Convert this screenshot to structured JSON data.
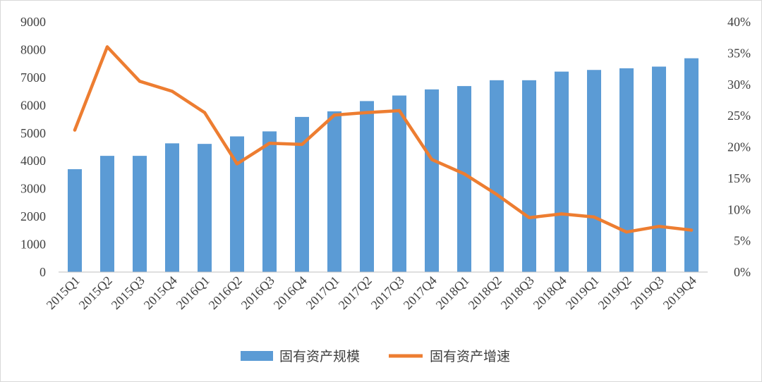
{
  "chart_data": {
    "type": "bar+line",
    "title": "",
    "categories": [
      "2015Q1",
      "2015Q2",
      "2015Q3",
      "2015Q4",
      "2016Q1",
      "2016Q2",
      "2016Q3",
      "2016Q4",
      "2017Q1",
      "2017Q2",
      "2017Q3",
      "2017Q4",
      "2018Q1",
      "2018Q2",
      "2018Q3",
      "2018Q4",
      "2019Q1",
      "2019Q2",
      "2019Q3",
      "2019Q4"
    ],
    "series": [
      {
        "name": "固有资产规模",
        "type": "bar",
        "axis": "left",
        "color": "#5B9BD5",
        "values": [
          3700,
          4180,
          4180,
          4630,
          4610,
          4880,
          5060,
          5580,
          5780,
          6150,
          6350,
          6570,
          6690,
          6900,
          6900,
          7210,
          7270,
          7330,
          7390,
          7690
        ]
      },
      {
        "name": "固有资产增速",
        "type": "line",
        "axis": "right",
        "color": "#ED7D31",
        "values": [
          22.7,
          36.0,
          30.5,
          28.9,
          25.5,
          17.3,
          20.6,
          20.4,
          25.1,
          25.5,
          25.8,
          18.0,
          15.7,
          12.4,
          8.7,
          9.3,
          8.8,
          6.4,
          7.3,
          6.7
        ]
      }
    ],
    "y_left": {
      "min": 0,
      "max": 9000,
      "step": 1000,
      "ticks": [
        "0",
        "1000",
        "2000",
        "3000",
        "4000",
        "5000",
        "6000",
        "7000",
        "8000",
        "9000"
      ]
    },
    "y_right": {
      "min": 0,
      "max": 40,
      "step": 5,
      "ticks": [
        "0%",
        "5%",
        "10%",
        "15%",
        "20%",
        "25%",
        "30%",
        "35%",
        "40%"
      ]
    },
    "grid": false,
    "legend_position": "bottom"
  }
}
